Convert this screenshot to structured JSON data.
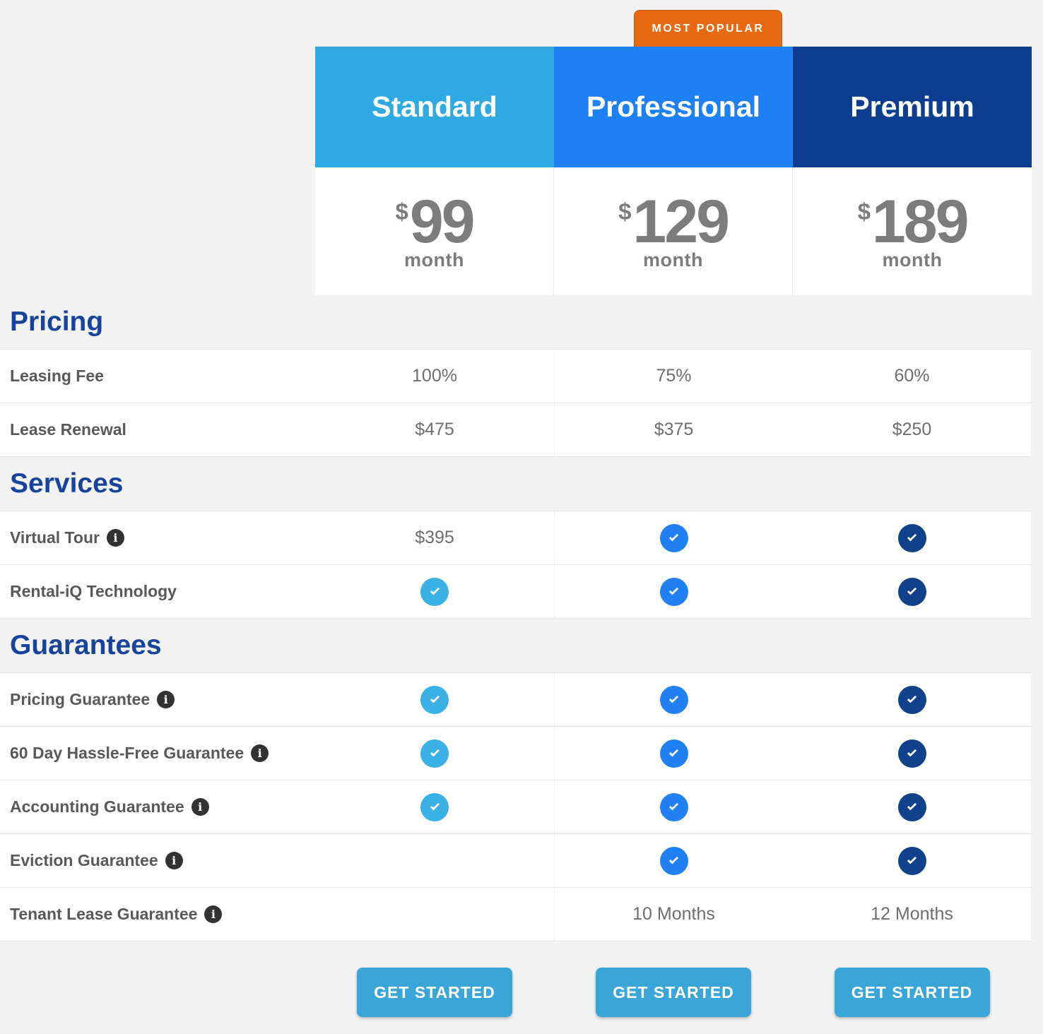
{
  "badge": {
    "label": "MOST POPULAR",
    "bg": "#e8690f"
  },
  "plans": [
    {
      "id": "standard",
      "name": "Standard",
      "header_bg": "#2fa9e1",
      "check_color": "#3ab0e5",
      "currency": "$",
      "price": "99",
      "period": "month"
    },
    {
      "id": "professional",
      "name": "Professional",
      "header_bg": "#1e80f5",
      "check_color": "#2180f3",
      "currency": "$",
      "price": "129",
      "period": "month"
    },
    {
      "id": "premium",
      "name": "Premium",
      "header_bg": "#0d3d8e",
      "check_color": "#12418c",
      "currency": "$",
      "price": "189",
      "period": "month"
    }
  ],
  "sections": [
    {
      "title": "Pricing",
      "rows": [
        {
          "label": "Leasing Fee",
          "info": false,
          "cells": [
            {
              "type": "text",
              "value": "100%"
            },
            {
              "type": "text",
              "value": "75%"
            },
            {
              "type": "text",
              "value": "60%"
            }
          ]
        },
        {
          "label": "Lease Renewal",
          "info": false,
          "cells": [
            {
              "type": "text",
              "value": "$475"
            },
            {
              "type": "text",
              "value": "$375"
            },
            {
              "type": "text",
              "value": "$250"
            }
          ]
        }
      ]
    },
    {
      "title": "Services",
      "rows": [
        {
          "label": "Virtual Tour",
          "info": true,
          "cells": [
            {
              "type": "text",
              "value": "$395"
            },
            {
              "type": "check"
            },
            {
              "type": "check"
            }
          ]
        },
        {
          "label": "Rental-iQ Technology",
          "info": false,
          "cells": [
            {
              "type": "check"
            },
            {
              "type": "check"
            },
            {
              "type": "check"
            }
          ]
        }
      ]
    },
    {
      "title": "Guarantees",
      "rows": [
        {
          "label": "Pricing Guarantee",
          "info": true,
          "cells": [
            {
              "type": "check"
            },
            {
              "type": "check"
            },
            {
              "type": "check"
            }
          ]
        },
        {
          "label": "60 Day Hassle-Free Guarantee",
          "info": true,
          "cells": [
            {
              "type": "check"
            },
            {
              "type": "check"
            },
            {
              "type": "check"
            }
          ]
        },
        {
          "label": "Accounting Guarantee",
          "info": true,
          "cells": [
            {
              "type": "check"
            },
            {
              "type": "check"
            },
            {
              "type": "check"
            }
          ]
        },
        {
          "label": "Eviction Guarantee",
          "info": true,
          "cells": [
            {
              "type": "empty"
            },
            {
              "type": "check"
            },
            {
              "type": "check"
            }
          ]
        },
        {
          "label": "Tenant Lease Guarantee",
          "info": true,
          "cells": [
            {
              "type": "empty"
            },
            {
              "type": "text",
              "value": "10 Months"
            },
            {
              "type": "text",
              "value": "12 Months"
            }
          ]
        }
      ]
    }
  ],
  "footer": {
    "cta_label": "GET STARTED",
    "cta_bg": "#3aa6d8"
  }
}
